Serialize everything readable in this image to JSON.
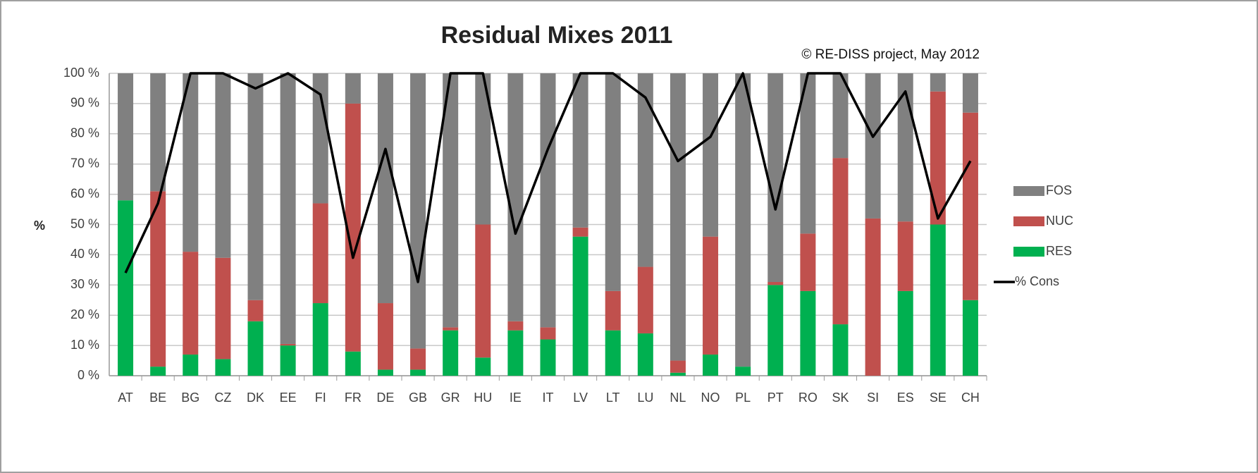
{
  "chart_data": {
    "type": "bar",
    "stacked": true,
    "title": "Residual Mixes 2011",
    "annotation": "© RE-DISS project, May 2012",
    "y_label": "%",
    "categories": [
      "AT",
      "BE",
      "BG",
      "CZ",
      "DK",
      "EE",
      "FI",
      "FR",
      "DE",
      "GB",
      "GR",
      "HU",
      "IE",
      "IT",
      "LV",
      "LT",
      "LU",
      "NL",
      "NO",
      "PL",
      "PT",
      "RO",
      "SK",
      "SI",
      "ES",
      "SE",
      "CH"
    ],
    "series": [
      {
        "name": "RES",
        "color": "#00b050",
        "values": [
          58,
          3,
          7,
          5.5,
          18,
          10,
          24,
          8,
          2,
          2,
          15,
          6,
          15,
          12,
          46,
          15,
          14,
          1,
          7,
          3,
          30,
          28,
          17,
          0,
          28,
          50,
          25
        ]
      },
      {
        "name": "NUC",
        "color": "#c0504d",
        "values": [
          0,
          58,
          34,
          33.5,
          7,
          0.5,
          33,
          82,
          22,
          7,
          1,
          44,
          3,
          4,
          3,
          13,
          22,
          4,
          39,
          0,
          1,
          19,
          55,
          52,
          23,
          44,
          62
        ]
      },
      {
        "name": "FOS",
        "color": "#808080",
        "values": [
          42,
          39,
          59,
          61,
          75,
          89.5,
          43,
          10,
          76,
          91,
          84,
          50,
          82,
          84,
          51,
          72,
          64,
          95,
          54,
          97,
          69,
          53,
          28,
          48,
          49,
          6,
          13
        ]
      },
      {
        "name": "% Cons",
        "type": "line",
        "color": "#000000",
        "values": [
          34,
          57,
          100,
          100,
          95,
          100,
          93,
          39,
          75,
          31,
          100,
          100,
          47,
          75,
          100,
          100,
          92,
          71,
          79,
          100,
          55,
          100,
          100,
          79,
          94,
          52,
          71
        ]
      }
    ],
    "ylim": [
      0,
      100
    ],
    "yticks": [
      {
        "value": 0,
        "label": "0 %"
      },
      {
        "value": 10,
        "label": "10 %"
      },
      {
        "value": 20,
        "label": "20 %"
      },
      {
        "value": 30,
        "label": "30 %"
      },
      {
        "value": 40,
        "label": "40 %"
      },
      {
        "value": 50,
        "label": "50 %"
      },
      {
        "value": 60,
        "label": "60 %"
      },
      {
        "value": 70,
        "label": "70 %"
      },
      {
        "value": 80,
        "label": "80 %"
      },
      {
        "value": 90,
        "label": "90 %"
      },
      {
        "value": 100,
        "label": "100 %"
      }
    ],
    "grid": true,
    "legend": "right"
  }
}
